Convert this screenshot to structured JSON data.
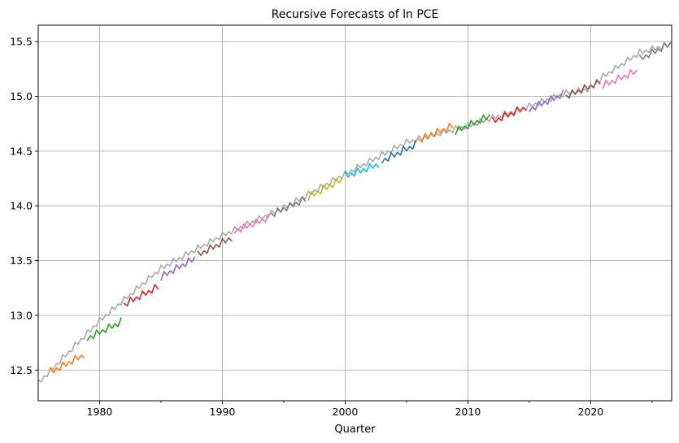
{
  "chart_data": {
    "type": "line",
    "title": "Recursive Forecasts of ln PCE",
    "xlabel": "Quarter",
    "ylabel": "",
    "xlim": [
      1975.0,
      2026.6
    ],
    "ylim": [
      12.22,
      15.65
    ],
    "grid": true,
    "x_ticks": [
      1980,
      1990,
      2000,
      2010,
      2020
    ],
    "x_tick_labels": [
      "1980",
      "1990",
      "2000",
      "2010",
      "2020"
    ],
    "x_minor_ticks": [
      1985,
      1995,
      2005,
      2015,
      2025
    ],
    "y_ticks": [
      12.5,
      13.0,
      13.5,
      14.0,
      14.5,
      15.0,
      15.5
    ],
    "y_tick_labels": [
      "12.5",
      "13.0",
      "13.5",
      "14.0",
      "14.5",
      "15.0",
      "15.5"
    ],
    "actual": {
      "color": "#aaaaaa",
      "seasonal_amplitude": 0.03,
      "trend_x": [
        1975.0,
        1980.0,
        1985.0,
        1990.0,
        1995.0,
        2000.0,
        2005.0,
        2010.0,
        2015.0,
        2018.0,
        2020.0,
        2021.0,
        2024.0,
        2026.6
      ],
      "trend_y": [
        12.38,
        12.95,
        13.43,
        13.73,
        13.98,
        14.29,
        14.58,
        14.73,
        14.91,
        15.03,
        15.07,
        15.18,
        15.4,
        15.48
      ]
    },
    "forecasts": [
      {
        "color": "#ff7f0e",
        "x_start": 1976.0,
        "x_end": 1978.75,
        "y_start": 12.48,
        "y_end": 12.64
      },
      {
        "color": "#2ca02c",
        "x_start": 1979.0,
        "x_end": 1981.75,
        "y_start": 12.79,
        "y_end": 12.94
      },
      {
        "color": "#d62728",
        "x_start": 1982.0,
        "x_end": 1984.75,
        "y_start": 13.1,
        "y_end": 13.26
      },
      {
        "color": "#9467bd",
        "x_start": 1985.0,
        "x_end": 1987.75,
        "y_start": 13.35,
        "y_end": 13.52
      },
      {
        "color": "#8c564b",
        "x_start": 1988.0,
        "x_end": 1990.75,
        "y_start": 13.55,
        "y_end": 13.71
      },
      {
        "color": "#e377c2",
        "x_start": 1991.0,
        "x_end": 1993.75,
        "y_start": 13.77,
        "y_end": 13.89
      },
      {
        "color": "#7f7f7f",
        "x_start": 1994.0,
        "x_end": 1996.75,
        "y_start": 13.92,
        "y_end": 14.06
      },
      {
        "color": "#bcbd22",
        "x_start": 1997.0,
        "x_end": 1999.75,
        "y_start": 14.08,
        "y_end": 14.24
      },
      {
        "color": "#17becf",
        "x_start": 2000.0,
        "x_end": 2002.75,
        "y_start": 14.27,
        "y_end": 14.38
      },
      {
        "color": "#1f77b4",
        "x_start": 2003.0,
        "x_end": 2005.75,
        "y_start": 14.41,
        "y_end": 14.56
      },
      {
        "color": "#ff7f0e",
        "x_start": 2006.0,
        "x_end": 2008.75,
        "y_start": 14.6,
        "y_end": 14.73
      },
      {
        "color": "#2ca02c",
        "x_start": 2009.0,
        "x_end": 2011.75,
        "y_start": 14.68,
        "y_end": 14.82
      },
      {
        "color": "#d62728",
        "x_start": 2012.0,
        "x_end": 2014.75,
        "y_start": 14.77,
        "y_end": 14.9
      },
      {
        "color": "#9467bd",
        "x_start": 2015.0,
        "x_end": 2017.75,
        "y_start": 14.88,
        "y_end": 15.02
      },
      {
        "color": "#8c564b",
        "x_start": 2018.0,
        "x_end": 2020.75,
        "y_start": 15.0,
        "y_end": 15.13
      },
      {
        "color": "#e377c2",
        "x_start": 2021.0,
        "x_end": 2023.75,
        "y_start": 15.1,
        "y_end": 15.23
      },
      {
        "color": "#7f7f7f",
        "x_start": 2024.0,
        "x_end": 2026.6,
        "y_start": 15.34,
        "y_end": 15.48
      }
    ],
    "forecast_seasonal_amplitude": 0.035
  }
}
